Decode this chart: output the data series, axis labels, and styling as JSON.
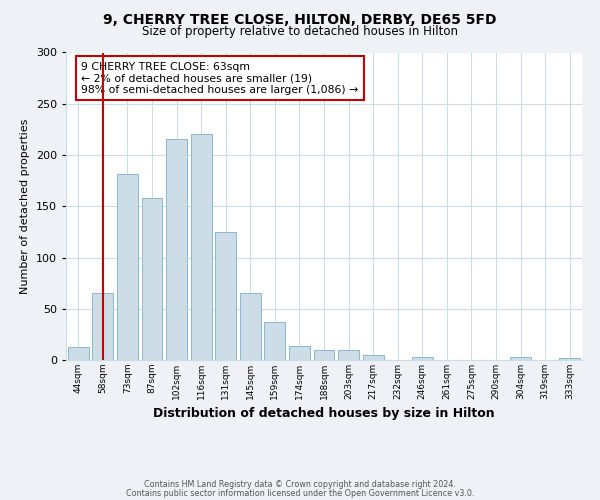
{
  "title_line1": "9, CHERRY TREE CLOSE, HILTON, DERBY, DE65 5FD",
  "title_line2": "Size of property relative to detached houses in Hilton",
  "xlabel": "Distribution of detached houses by size in Hilton",
  "ylabel": "Number of detached properties",
  "categories": [
    "44sqm",
    "58sqm",
    "73sqm",
    "87sqm",
    "102sqm",
    "116sqm",
    "131sqm",
    "145sqm",
    "159sqm",
    "174sqm",
    "188sqm",
    "203sqm",
    "217sqm",
    "232sqm",
    "246sqm",
    "261sqm",
    "275sqm",
    "290sqm",
    "304sqm",
    "319sqm",
    "333sqm"
  ],
  "values": [
    13,
    65,
    181,
    158,
    216,
    220,
    125,
    65,
    37,
    14,
    10,
    10,
    5,
    0,
    3,
    0,
    0,
    0,
    3,
    0,
    2
  ],
  "bar_color": "#ccdde8",
  "bar_edge_color": "#88b8d0",
  "vertical_line_x": 1,
  "vertical_line_color": "#cc0000",
  "ylim": [
    0,
    300
  ],
  "yticks": [
    0,
    50,
    100,
    150,
    200,
    250,
    300
  ],
  "annotation_line1": "9 CHERRY TREE CLOSE: 63sqm",
  "annotation_line2": "← 2% of detached houses are smaller (19)",
  "annotation_line3": "98% of semi-detached houses are larger (1,086) →",
  "footnote1": "Contains HM Land Registry data © Crown copyright and database right 2024.",
  "footnote2": "Contains public sector information licensed under the Open Government Licence v3.0.",
  "background_color": "#eef2f6",
  "plot_background_color": "#ffffff",
  "grid_color": "#ccdde8"
}
